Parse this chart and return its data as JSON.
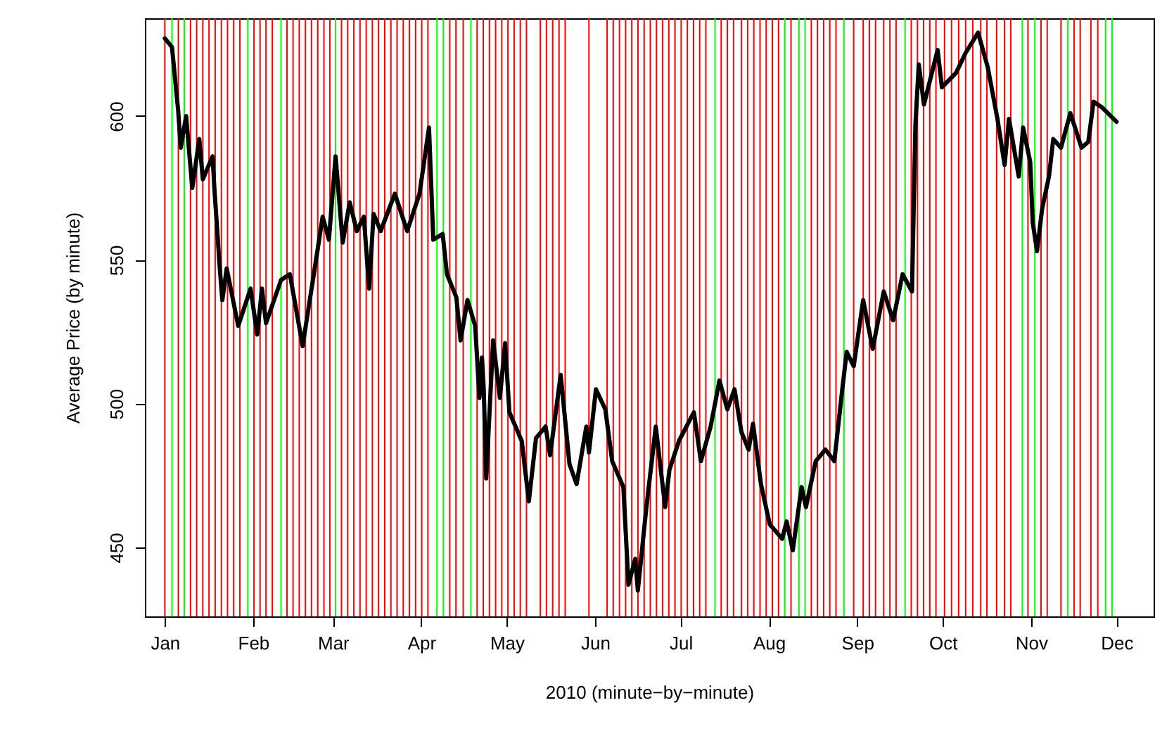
{
  "chart_data": {
    "type": "line",
    "xlabel": "2010 (minute−by−minute)",
    "ylabel": "Average Price (by minute)",
    "xlim": [
      "2009-12-25",
      "2010-12-14"
    ],
    "ylim": [
      426,
      634
    ],
    "xticks": [
      {
        "value": "2010-01",
        "label": "Jan"
      },
      {
        "value": "2010-02",
        "label": "Feb"
      },
      {
        "value": "2010-03",
        "label": "Mar"
      },
      {
        "value": "2010-04",
        "label": "Apr"
      },
      {
        "value": "2010-05",
        "label": "May"
      },
      {
        "value": "2010-06",
        "label": "Jun"
      },
      {
        "value": "2010-07",
        "label": "Jul"
      },
      {
        "value": "2010-08",
        "label": "Aug"
      },
      {
        "value": "2010-09",
        "label": "Sep"
      },
      {
        "value": "2010-10",
        "label": "Oct"
      },
      {
        "value": "2010-11",
        "label": "Nov"
      },
      {
        "value": "2010-12",
        "label": "Dec"
      }
    ],
    "yticks": [
      450,
      500,
      550,
      600
    ],
    "line_style": "solid",
    "x": [
      "2010-01-01T00:00",
      "2010-01-03T12:00",
      "2010-01-05T16:00",
      "2010-01-06T14:00",
      "2010-01-08T11:00",
      "2010-01-10T15:00",
      "2010-01-13T02:00",
      "2010-01-14T08:00",
      "2010-01-17T18:00",
      "2010-01-18T09:00",
      "2010-01-20T05:00",
      "2010-01-21T04:00",
      "2010-01-22T17:00",
      "2010-01-26T18:00",
      "2010-01-31T02:00",
      "2010-02-02T10:00",
      "2010-02-04T02:00",
      "2010-02-05T12:00",
      "2010-02-10T19:00",
      "2010-02-13T21:00",
      "2010-02-18T09:00",
      "2010-02-19T18:00",
      "2010-02-22T07:00",
      "2010-02-25T09:00",
      "2010-02-27T14:00",
      "2010-03-01T22:00",
      "2010-03-04T10:00",
      "2010-03-06T21:00",
      "2010-03-09T09:00",
      "2010-03-11T20:00",
      "2010-03-13T17:00",
      "2010-03-15T06:00",
      "2010-03-17T18:00",
      "2010-03-22T17:00",
      "2010-03-27T01:00",
      "2010-03-31T09:00",
      "2010-04-03T17:00",
      "2010-04-05T05:00",
      "2010-04-08T12:00",
      "2010-04-10T00:00",
      "2010-04-13T07:00",
      "2010-04-14T19:00",
      "2010-04-17T05:00",
      "2010-04-19T22:00",
      "2010-04-21T10:00",
      "2010-04-22T07:00",
      "2010-04-22T22:00",
      "2010-04-23T19:00",
      "2010-04-26T05:00",
      "2010-04-28T14:00",
      "2010-04-30T10:00",
      "2010-05-01T22:00",
      "2010-05-06T06:00",
      "2010-05-08T18:00",
      "2010-05-11T06:00",
      "2010-05-14T15:00",
      "2010-05-16T05:00",
      "2010-05-19T22:00",
      "2010-05-23T00:00",
      "2010-05-25T12:00",
      "2010-05-28T22:00",
      "2010-05-29T20:00",
      "2010-06-01T07:00",
      "2010-06-04T14:00",
      "2010-06-07T00:00",
      "2010-06-10T22:00",
      "2010-06-12T17:00",
      "2010-06-15T02:00",
      "2010-06-16T00:00",
      "2010-06-19T00:00",
      "2010-06-22T07:00",
      "2010-06-25T14:00",
      "2010-06-27T02:00",
      "2010-06-30T10:00",
      "2010-07-05T16:00",
      "2010-07-08T03:00",
      "2010-07-11T13:00",
      "2010-07-14T15:00",
      "2010-07-17T10:00",
      "2010-07-19T22:00",
      "2010-07-22T09:00",
      "2010-07-24T21:00",
      "2010-07-26T10:00",
      "2010-07-29T05:00",
      "2010-08-01T07:00",
      "2010-08-05T16:00",
      "2010-08-07T05:00",
      "2010-08-09T09:00",
      "2010-08-12T11:00",
      "2010-08-14T00:00",
      "2010-08-17T10:00",
      "2010-08-20T20:00",
      "2010-08-23T23:00",
      "2010-08-26T18:00",
      "2010-08-28T07:00",
      "2010-08-30T18:00",
      "2010-09-03T02:00",
      "2010-09-06T10:00",
      "2010-09-10T07:00",
      "2010-09-13T14:00",
      "2010-09-16T22:00",
      "2010-09-20T05:00",
      "2010-09-21T10:00",
      "2010-09-22T14:00",
      "2010-09-24T10:00",
      "2010-09-29T05:00",
      "2010-09-30T17:00",
      "2010-10-05T16:00",
      "2010-10-09T01:00",
      "2010-10-13T10:00",
      "2010-10-16T19:00",
      "2010-10-20T05:00",
      "2010-10-22T17:00",
      "2010-10-24T06:00",
      "2010-10-27T16:00",
      "2010-10-29T05:00",
      "2010-10-31T17:00",
      "2010-11-01T14:00",
      "2010-11-03T02:00",
      "2010-11-04T22:00",
      "2010-11-07T07:00",
      "2010-11-08T19:00",
      "2010-11-11T12:00",
      "2010-11-14T19:00",
      "2010-11-18T17:00",
      "2010-11-21T02:00",
      "2010-11-22T22:00",
      "2010-11-25T22:00",
      "2010-12-01T00:00"
    ],
    "series": [
      {
        "color": "#000000",
        "values": [
          627,
          624,
          602,
          589,
          600,
          575,
          592,
          578,
          586,
          575,
          548,
          536,
          547,
          527,
          540,
          524,
          540,
          528,
          543,
          545,
          520,
          529,
          545,
          565,
          557,
          586,
          556,
          570,
          560,
          565,
          540,
          566,
          560,
          573,
          560,
          573,
          596,
          557,
          559,
          545,
          537,
          522,
          536,
          527,
          502,
          516,
          505,
          474,
          522,
          502,
          521,
          497,
          487,
          466,
          488,
          492,
          482,
          510,
          479,
          472,
          492,
          483,
          505,
          498,
          480,
          471,
          437,
          446,
          435,
          464,
          492,
          464,
          477,
          487,
          497,
          480,
          492,
          508,
          498,
          505,
          490,
          484,
          493,
          472,
          458,
          453,
          459,
          449,
          471,
          464,
          480,
          484,
          480,
          505,
          518,
          513,
          536,
          519,
          539,
          529,
          545,
          539,
          597,
          618,
          604,
          623,
          610,
          615,
          622,
          629,
          617,
          599,
          583,
          599,
          579,
          596,
          584,
          563,
          553,
          568,
          579,
          592,
          589,
          601,
          589,
          591,
          605,
          603,
          598
        ]
      }
    ],
    "ref_lines": [
      {
        "axis": "x",
        "value": "2010-01-01T00:00",
        "color": "#ff0000"
      },
      {
        "axis": "x",
        "value": "2010-01-03T12:00",
        "color": "#00ff00"
      },
      {
        "axis": "x",
        "value": "2010-01-05T18:00",
        "color": "#ff0000"
      },
      {
        "axis": "x",
        "value": "2010-01-07T20:00",
        "color": "#00ff00"
      },
      {
        "axis": "x",
        "value": "2010-01-10T00:00",
        "color": "#ff0000"
      },
      {
        "axis": "x",
        "value": "2010-01-12T04:00",
        "color": "#ff0000"
      },
      {
        "axis": "x",
        "value": "2010-01-14T08:00",
        "color": "#ff0000"
      },
      {
        "axis": "x",
        "value": "2010-01-16T12:00",
        "color": "#ff0000"
      },
      {
        "axis": "x",
        "value": "2010-01-18T16:00",
        "color": "#ff0000"
      },
      {
        "axis": "x",
        "value": "2010-01-20T20:00",
        "color": "#ff0000"
      },
      {
        "axis": "x",
        "value": "2010-01-23T00:00",
        "color": "#ff0000"
      },
      {
        "axis": "x",
        "value": "2010-01-25T04:00",
        "color": "#ff0000"
      },
      {
        "axis": "x",
        "value": "2010-01-27T08:00",
        "color": "#ff0000"
      },
      {
        "axis": "x",
        "value": "2010-01-30T03:00",
        "color": "#00ff00"
      },
      {
        "axis": "x",
        "value": "2010-02-01T07:00",
        "color": "#ff0000"
      },
      {
        "axis": "x",
        "value": "2010-02-03T10:00",
        "color": "#ff0000"
      },
      {
        "axis": "x",
        "value": "2010-02-05T12:00",
        "color": "#ff0000"
      },
      {
        "axis": "x",
        "value": "2010-02-07T17:00",
        "color": "#ff0000"
      },
      {
        "axis": "x",
        "value": "2010-02-10T19:00",
        "color": "#00ff00"
      },
      {
        "axis": "x",
        "value": "2010-02-12T21:00",
        "color": "#ff0000"
      },
      {
        "axis": "x",
        "value": "2010-02-15T00:00",
        "color": "#ff0000"
      },
      {
        "axis": "x",
        "value": "2010-02-17T04:00",
        "color": "#ff0000"
      },
      {
        "axis": "x",
        "value": "2010-02-19T08:00",
        "color": "#ff0000"
      },
      {
        "axis": "x",
        "value": "2010-02-21T11:00",
        "color": "#ff0000"
      },
      {
        "axis": "x",
        "value": "2010-02-23T16:00",
        "color": "#ff0000"
      },
      {
        "axis": "x",
        "value": "2010-02-25T20:00",
        "color": "#ff0000"
      },
      {
        "axis": "x",
        "value": "2010-02-27T22:00",
        "color": "#ff0000"
      },
      {
        "axis": "x",
        "value": "2010-03-01T22:00",
        "color": "#00ff00"
      },
      {
        "axis": "x",
        "value": "2010-03-04T00:00",
        "color": "#ff0000"
      },
      {
        "axis": "x",
        "value": "2010-03-06T04:00",
        "color": "#ff0000"
      },
      {
        "axis": "x",
        "value": "2010-03-08T08:00",
        "color": "#ff0000"
      },
      {
        "axis": "x",
        "value": "2010-03-10T12:00",
        "color": "#ff0000"
      },
      {
        "axis": "x",
        "value": "2010-03-12T16:00",
        "color": "#ff0000"
      },
      {
        "axis": "x",
        "value": "2010-03-14T20:00",
        "color": "#ff0000"
      },
      {
        "axis": "x",
        "value": "2010-03-17T00:00",
        "color": "#ff0000"
      },
      {
        "axis": "x",
        "value": "2010-03-19T04:00",
        "color": "#ff0000"
      },
      {
        "axis": "x",
        "value": "2010-03-21T08:00",
        "color": "#ff0000"
      },
      {
        "axis": "x",
        "value": "2010-03-23T12:00",
        "color": "#ff0000"
      },
      {
        "axis": "x",
        "value": "2010-03-25T16:00",
        "color": "#ff0000"
      },
      {
        "axis": "x",
        "value": "2010-03-27T20:00",
        "color": "#ff0000"
      },
      {
        "axis": "x",
        "value": "2010-03-30T00:00",
        "color": "#ff0000"
      },
      {
        "axis": "x",
        "value": "2010-04-01T04:00",
        "color": "#ff0000"
      },
      {
        "axis": "x",
        "value": "2010-04-03T08:00",
        "color": "#ff0000"
      },
      {
        "axis": "x",
        "value": "2010-04-06T12:00",
        "color": "#00ff00"
      },
      {
        "axis": "x",
        "value": "2010-04-08T18:00",
        "color": "#00ff00"
      },
      {
        "axis": "x",
        "value": "2010-04-11T00:00",
        "color": "#ff0000"
      },
      {
        "axis": "x",
        "value": "2010-04-13T04:00",
        "color": "#ff0000"
      },
      {
        "axis": "x",
        "value": "2010-04-15T17:00",
        "color": "#ff0000"
      },
      {
        "axis": "x",
        "value": "2010-04-18T10:00",
        "color": "#00ff00"
      },
      {
        "axis": "x",
        "value": "2010-04-20T14:00",
        "color": "#ff0000"
      },
      {
        "axis": "x",
        "value": "2010-04-22T18:00",
        "color": "#ff0000"
      },
      {
        "axis": "x",
        "value": "2010-04-24T22:00",
        "color": "#ff0000"
      },
      {
        "axis": "x",
        "value": "2010-04-27T02:00",
        "color": "#ff0000"
      },
      {
        "axis": "x",
        "value": "2010-04-29T06:00",
        "color": "#ff0000"
      },
      {
        "axis": "x",
        "value": "2010-05-01T10:00",
        "color": "#ff0000"
      },
      {
        "axis": "x",
        "value": "2010-05-03T14:00",
        "color": "#ff0000"
      },
      {
        "axis": "x",
        "value": "2010-05-05T18:00",
        "color": "#ff0000"
      },
      {
        "axis": "x",
        "value": "2010-05-07T22:00",
        "color": "#ff0000"
      },
      {
        "axis": "x",
        "value": "2010-05-12T19:00",
        "color": "#ff0000"
      },
      {
        "axis": "x",
        "value": "2010-05-14T22:00",
        "color": "#ff0000"
      },
      {
        "axis": "x",
        "value": "2010-05-17T03:00",
        "color": "#ff0000"
      },
      {
        "axis": "x",
        "value": "2010-05-19T08:00",
        "color": "#ff0000"
      },
      {
        "axis": "x",
        "value": "2010-05-21T12:00",
        "color": "#ff0000"
      },
      {
        "axis": "x",
        "value": "2010-05-29T20:00",
        "color": "#ff0000"
      },
      {
        "axis": "x",
        "value": "2010-06-05T05:00",
        "color": "#ff0000"
      },
      {
        "axis": "x",
        "value": "2010-06-07T09:00",
        "color": "#ff0000"
      },
      {
        "axis": "x",
        "value": "2010-06-09T13:00",
        "color": "#ff0000"
      },
      {
        "axis": "x",
        "value": "2010-06-11T17:00",
        "color": "#ff0000"
      },
      {
        "axis": "x",
        "value": "2010-06-13T21:00",
        "color": "#ff0000"
      },
      {
        "axis": "x",
        "value": "2010-06-16T01:00",
        "color": "#ff0000"
      },
      {
        "axis": "x",
        "value": "2010-06-18T05:00",
        "color": "#ff0000"
      },
      {
        "axis": "x",
        "value": "2010-06-20T09:00",
        "color": "#ff0000"
      },
      {
        "axis": "x",
        "value": "2010-06-22T13:00",
        "color": "#ff0000"
      },
      {
        "axis": "x",
        "value": "2010-06-24T17:00",
        "color": "#ff0000"
      },
      {
        "axis": "x",
        "value": "2010-06-26T21:00",
        "color": "#ff0000"
      },
      {
        "axis": "x",
        "value": "2010-06-29T01:00",
        "color": "#ff0000"
      },
      {
        "axis": "x",
        "value": "2010-07-01T05:00",
        "color": "#ff0000"
      },
      {
        "axis": "x",
        "value": "2010-07-03T09:00",
        "color": "#ff0000"
      },
      {
        "axis": "x",
        "value": "2010-07-05T13:00",
        "color": "#ff0000"
      },
      {
        "axis": "x",
        "value": "2010-07-07T17:00",
        "color": "#ff0000"
      },
      {
        "axis": "x",
        "value": "2010-07-09T21:00",
        "color": "#ff0000"
      },
      {
        "axis": "x",
        "value": "2010-07-13T02:00",
        "color": "#00ff00"
      },
      {
        "axis": "x",
        "value": "2010-07-15T06:00",
        "color": "#ff0000"
      },
      {
        "axis": "x",
        "value": "2010-07-17T10:00",
        "color": "#ff0000"
      },
      {
        "axis": "x",
        "value": "2010-07-19T14:00",
        "color": "#ff0000"
      },
      {
        "axis": "x",
        "value": "2010-07-22T09:00",
        "color": "#ff0000"
      },
      {
        "axis": "x",
        "value": "2010-07-24T13:00",
        "color": "#ff0000"
      },
      {
        "axis": "x",
        "value": "2010-07-26T17:00",
        "color": "#ff0000"
      },
      {
        "axis": "x",
        "value": "2010-07-28T21:00",
        "color": "#ff0000"
      },
      {
        "axis": "x",
        "value": "2010-07-31T01:00",
        "color": "#ff0000"
      },
      {
        "axis": "x",
        "value": "2010-08-02T05:00",
        "color": "#ff0000"
      },
      {
        "axis": "x",
        "value": "2010-08-04T09:00",
        "color": "#ff0000"
      },
      {
        "axis": "x",
        "value": "2010-08-06T14:00",
        "color": "#00ff00"
      },
      {
        "axis": "x",
        "value": "2010-08-08T18:00",
        "color": "#ff0000"
      },
      {
        "axis": "x",
        "value": "2010-08-11T13:00",
        "color": "#00ff00"
      },
      {
        "axis": "x",
        "value": "2010-08-13T17:00",
        "color": "#00ff00"
      },
      {
        "axis": "x",
        "value": "2010-08-15T21:00",
        "color": "#ff0000"
      },
      {
        "axis": "x",
        "value": "2010-08-18T01:00",
        "color": "#ff0000"
      },
      {
        "axis": "x",
        "value": "2010-08-20T05:00",
        "color": "#ff0000"
      },
      {
        "axis": "x",
        "value": "2010-08-22T09:00",
        "color": "#ff0000"
      },
      {
        "axis": "x",
        "value": "2010-08-24T13:00",
        "color": "#ff0000"
      },
      {
        "axis": "x",
        "value": "2010-08-27T08:00",
        "color": "#00ff00"
      },
      {
        "axis": "x",
        "value": "2010-08-30T18:00",
        "color": "#ff0000"
      },
      {
        "axis": "x",
        "value": "2010-09-03T02:00",
        "color": "#ff0000"
      },
      {
        "axis": "x",
        "value": "2010-09-05T06:00",
        "color": "#ff0000"
      },
      {
        "axis": "x",
        "value": "2010-09-07T10:00",
        "color": "#ff0000"
      },
      {
        "axis": "x",
        "value": "2010-09-10T07:00",
        "color": "#ff0000"
      },
      {
        "axis": "x",
        "value": "2010-09-12T11:00",
        "color": "#ff0000"
      },
      {
        "axis": "x",
        "value": "2010-09-14T15:00",
        "color": "#ff0000"
      },
      {
        "axis": "x",
        "value": "2010-09-17T19:00",
        "color": "#00ff00"
      },
      {
        "axis": "x",
        "value": "2010-09-19T23:00",
        "color": "#ff0000"
      },
      {
        "axis": "x",
        "value": "2010-09-22T03:00",
        "color": "#ff0000"
      },
      {
        "axis": "x",
        "value": "2010-09-24T07:00",
        "color": "#ff0000"
      },
      {
        "axis": "x",
        "value": "2010-09-26T11:00",
        "color": "#ff0000"
      },
      {
        "axis": "x",
        "value": "2010-09-28T15:00",
        "color": "#ff0000"
      },
      {
        "axis": "x",
        "value": "2010-10-01T15:00",
        "color": "#ff0000"
      },
      {
        "axis": "x",
        "value": "2010-10-04T02:00",
        "color": "#ff0000"
      },
      {
        "axis": "x",
        "value": "2010-10-06T14:00",
        "color": "#ff0000"
      },
      {
        "axis": "x",
        "value": "2010-10-09T01:00",
        "color": "#ff0000"
      },
      {
        "axis": "x",
        "value": "2010-10-11T13:00",
        "color": "#ff0000"
      },
      {
        "axis": "x",
        "value": "2010-10-14T08:00",
        "color": "#ff0000"
      },
      {
        "axis": "x",
        "value": "2010-10-16T12:00",
        "color": "#ff0000"
      },
      {
        "axis": "x",
        "value": "2010-10-19T22:00",
        "color": "#ff0000"
      },
      {
        "axis": "x",
        "value": "2010-10-22T17:00",
        "color": "#ff0000"
      },
      {
        "axis": "x",
        "value": "2010-10-24T21:00",
        "color": "#ff0000"
      },
      {
        "axis": "x",
        "value": "2010-10-28T22:00",
        "color": "#00ff00"
      },
      {
        "axis": "x",
        "value": "2010-10-30T22:00",
        "color": "#ff0000"
      },
      {
        "axis": "x",
        "value": "2010-11-02T08:00",
        "color": "#00ff00"
      },
      {
        "axis": "x",
        "value": "2010-11-04T12:00",
        "color": "#ff0000"
      },
      {
        "axis": "x",
        "value": "2010-11-06T16:00",
        "color": "#ff0000"
      },
      {
        "axis": "x",
        "value": "2010-11-11T12:00",
        "color": "#ff0000"
      },
      {
        "axis": "x",
        "value": "2010-11-13T22:00",
        "color": "#00ff00"
      },
      {
        "axis": "x",
        "value": "2010-11-16T02:00",
        "color": "#ff0000"
      },
      {
        "axis": "x",
        "value": "2010-11-18T06:00",
        "color": "#ff0000"
      },
      {
        "axis": "x",
        "value": "2010-11-22T00:00",
        "color": "#ff0000"
      },
      {
        "axis": "x",
        "value": "2010-11-24T10:00",
        "color": "#ff0000"
      },
      {
        "axis": "x",
        "value": "2010-11-27T04:00",
        "color": "#00ff00"
      },
      {
        "axis": "x",
        "value": "2010-11-29T10:00",
        "color": "#00ff00"
      }
    ]
  }
}
